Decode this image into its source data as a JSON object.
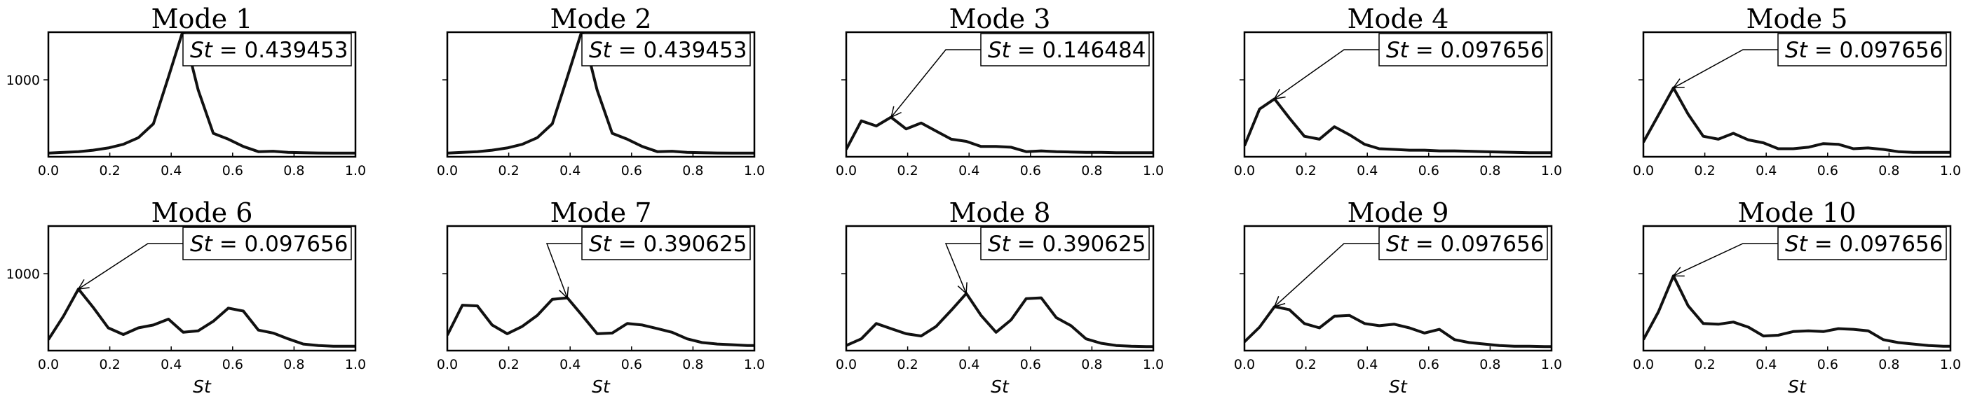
{
  "chart_data": [
    {
      "type": "line",
      "title": "Mode 1",
      "annotation": {
        "label_var": "St",
        "label_value": "0.439453",
        "arrow_x": 0.439453
      },
      "x": [
        0,
        0.049,
        0.098,
        0.146,
        0.195,
        0.244,
        0.293,
        0.342,
        0.391,
        0.439,
        0.488,
        0.537,
        0.586,
        0.635,
        0.684,
        0.732,
        0.781,
        0.83,
        0.879,
        0.928,
        0.977,
        1.0
      ],
      "values": [
        0,
        10,
        20,
        40,
        70,
        120,
        210,
        400,
        1040,
        1680,
        860,
        270,
        190,
        90,
        20,
        25,
        10,
        5,
        2,
        1,
        1,
        1
      ],
      "ylim": [
        -50,
        1650
      ],
      "yticks": [
        1000
      ],
      "xticks": [
        0.0,
        0.2,
        0.4,
        0.6,
        0.8,
        1.0
      ],
      "xlabel": ""
    },
    {
      "type": "line",
      "title": "Mode 2",
      "annotation": {
        "label_var": "St",
        "label_value": "0.439453",
        "arrow_x": 0.439453
      },
      "x": [
        0,
        0.049,
        0.098,
        0.146,
        0.195,
        0.244,
        0.293,
        0.342,
        0.391,
        0.439,
        0.488,
        0.537,
        0.586,
        0.635,
        0.684,
        0.732,
        0.781,
        0.83,
        0.879,
        0.928,
        0.977,
        1.0
      ],
      "values": [
        0,
        10,
        20,
        40,
        70,
        120,
        210,
        400,
        1040,
        1680,
        860,
        270,
        190,
        90,
        20,
        25,
        10,
        5,
        2,
        1,
        1,
        1
      ],
      "ylim": [
        -50,
        1650
      ],
      "yticks": [
        1000
      ],
      "xticks": [
        0.0,
        0.2,
        0.4,
        0.6,
        0.8,
        1.0
      ],
      "xlabel": ""
    },
    {
      "type": "line",
      "title": "Mode 3",
      "annotation": {
        "label_var": "St",
        "label_value": "0.146484",
        "arrow_x": 0.146484
      },
      "x": [
        0,
        0.049,
        0.098,
        0.146,
        0.195,
        0.244,
        0.293,
        0.342,
        0.391,
        0.439,
        0.488,
        0.537,
        0.586,
        0.635,
        0.684,
        0.732,
        0.781,
        0.83,
        0.879,
        0.928,
        0.977,
        1.0
      ],
      "values": [
        50,
        440,
        370,
        490,
        330,
        410,
        300,
        190,
        160,
        90,
        90,
        80,
        20,
        30,
        20,
        15,
        10,
        10,
        5,
        5,
        5,
        5
      ],
      "ylim": [
        -50,
        1650
      ],
      "yticks": [
        1000
      ],
      "xticks": [
        0.0,
        0.2,
        0.4,
        0.6,
        0.8,
        1.0
      ],
      "xlabel": ""
    },
    {
      "type": "line",
      "title": "Mode 4",
      "annotation": {
        "label_var": "St",
        "label_value": "0.097656",
        "arrow_x": 0.097656
      },
      "x": [
        0,
        0.049,
        0.098,
        0.146,
        0.195,
        0.244,
        0.293,
        0.342,
        0.391,
        0.439,
        0.488,
        0.537,
        0.586,
        0.635,
        0.684,
        0.732,
        0.781,
        0.83,
        0.879,
        0.928,
        0.977,
        1.0
      ],
      "values": [
        100,
        600,
        740,
        480,
        230,
        190,
        360,
        250,
        120,
        60,
        50,
        40,
        40,
        30,
        30,
        25,
        20,
        15,
        10,
        5,
        5,
        5
      ],
      "ylim": [
        -50,
        1650
      ],
      "yticks": [
        1000
      ],
      "xticks": [
        0.0,
        0.2,
        0.4,
        0.6,
        0.8,
        1.0
      ],
      "xlabel": ""
    },
    {
      "type": "line",
      "title": "Mode 5",
      "annotation": {
        "label_var": "St",
        "label_value": "0.097656",
        "arrow_x": 0.097656
      },
      "x": [
        0,
        0.049,
        0.098,
        0.146,
        0.195,
        0.244,
        0.293,
        0.342,
        0.391,
        0.439,
        0.488,
        0.537,
        0.586,
        0.635,
        0.684,
        0.732,
        0.781,
        0.83,
        0.879,
        0.928,
        0.977,
        1.0
      ],
      "values": [
        150,
        520,
        890,
        530,
        230,
        190,
        270,
        180,
        140,
        60,
        60,
        80,
        130,
        120,
        60,
        70,
        50,
        20,
        10,
        10,
        10,
        10
      ],
      "ylim": [
        -50,
        1650
      ],
      "yticks": [
        1000
      ],
      "xticks": [
        0.0,
        0.2,
        0.4,
        0.6,
        0.8,
        1.0
      ],
      "xlabel": ""
    },
    {
      "type": "line",
      "title": "Mode 6",
      "annotation": {
        "label_var": "St",
        "label_value": "0.097656",
        "arrow_x": 0.097656
      },
      "x": [
        0,
        0.049,
        0.098,
        0.146,
        0.195,
        0.244,
        0.293,
        0.342,
        0.391,
        0.439,
        0.488,
        0.537,
        0.586,
        0.635,
        0.684,
        0.732,
        0.781,
        0.83,
        0.879,
        0.928,
        0.977,
        1.0
      ],
      "values": [
        100,
        420,
        790,
        540,
        260,
        170,
        260,
        300,
        380,
        200,
        220,
        350,
        530,
        490,
        230,
        190,
        110,
        40,
        20,
        10,
        10,
        10
      ],
      "ylim": [
        -50,
        1650
      ],
      "yticks": [
        1000
      ],
      "xticks": [
        0.0,
        0.2,
        0.4,
        0.6,
        0.8,
        1.0
      ],
      "xlabel": "St"
    },
    {
      "type": "line",
      "title": "Mode 7",
      "annotation": {
        "label_var": "St",
        "label_value": "0.390625",
        "arrow_x": 0.390625
      },
      "x": [
        0,
        0.049,
        0.098,
        0.146,
        0.195,
        0.244,
        0.293,
        0.342,
        0.391,
        0.439,
        0.488,
        0.537,
        0.586,
        0.635,
        0.684,
        0.732,
        0.781,
        0.83,
        0.879,
        0.928,
        0.977,
        1.0
      ],
      "values": [
        160,
        570,
        560,
        300,
        180,
        280,
        430,
        650,
        670,
        430,
        180,
        190,
        320,
        300,
        250,
        200,
        110,
        60,
        40,
        30,
        20,
        20
      ],
      "ylim": [
        -50,
        1650
      ],
      "yticks": [
        1000
      ],
      "xticks": [
        0.0,
        0.2,
        0.4,
        0.6,
        0.8,
        1.0
      ],
      "xlabel": "St"
    },
    {
      "type": "line",
      "title": "Mode 8",
      "annotation": {
        "label_var": "St",
        "label_value": "0.390625",
        "arrow_x": 0.390625
      },
      "x": [
        0,
        0.049,
        0.098,
        0.146,
        0.195,
        0.244,
        0.293,
        0.342,
        0.391,
        0.439,
        0.488,
        0.537,
        0.586,
        0.635,
        0.684,
        0.732,
        0.781,
        0.83,
        0.879,
        0.928,
        0.977,
        1.0
      ],
      "values": [
        20,
        110,
        320,
        250,
        180,
        150,
        280,
        500,
        730,
        430,
        200,
        370,
        660,
        670,
        400,
        290,
        110,
        50,
        20,
        10,
        5,
        5
      ],
      "ylim": [
        -50,
        1650
      ],
      "yticks": [
        1000
      ],
      "xticks": [
        0.0,
        0.2,
        0.4,
        0.6,
        0.8,
        1.0
      ],
      "xlabel": "St"
    },
    {
      "type": "line",
      "title": "Mode 9",
      "annotation": {
        "label_var": "St",
        "label_value": "0.097656",
        "arrow_x": 0.097656
      },
      "x": [
        0,
        0.049,
        0.098,
        0.146,
        0.195,
        0.244,
        0.293,
        0.342,
        0.391,
        0.439,
        0.488,
        0.537,
        0.586,
        0.635,
        0.684,
        0.732,
        0.781,
        0.83,
        0.879,
        0.928,
        0.977,
        1.0
      ],
      "values": [
        70,
        270,
        550,
        510,
        320,
        260,
        420,
        430,
        320,
        290,
        310,
        260,
        190,
        240,
        100,
        60,
        40,
        20,
        10,
        10,
        5,
        5
      ],
      "ylim": [
        -50,
        1650
      ],
      "yticks": [
        1000
      ],
      "xticks": [
        0.0,
        0.2,
        0.4,
        0.6,
        0.8,
        1.0
      ],
      "xlabel": "St"
    },
    {
      "type": "line",
      "title": "Mode 10",
      "annotation": {
        "label_var": "St",
        "label_value": "0.097656",
        "arrow_x": 0.097656
      },
      "x": [
        0,
        0.049,
        0.098,
        0.146,
        0.195,
        0.244,
        0.293,
        0.342,
        0.391,
        0.439,
        0.488,
        0.537,
        0.586,
        0.635,
        0.684,
        0.732,
        0.781,
        0.83,
        0.879,
        0.928,
        0.977,
        1.0
      ],
      "values": [
        100,
        480,
        970,
        560,
        320,
        310,
        340,
        270,
        150,
        160,
        210,
        220,
        210,
        250,
        240,
        220,
        100,
        60,
        40,
        20,
        10,
        10
      ],
      "ylim": [
        -50,
        1650
      ],
      "yticks": [
        1000
      ],
      "xticks": [
        0.0,
        0.2,
        0.4,
        0.6,
        0.8,
        1.0
      ],
      "xlabel": "St"
    }
  ]
}
